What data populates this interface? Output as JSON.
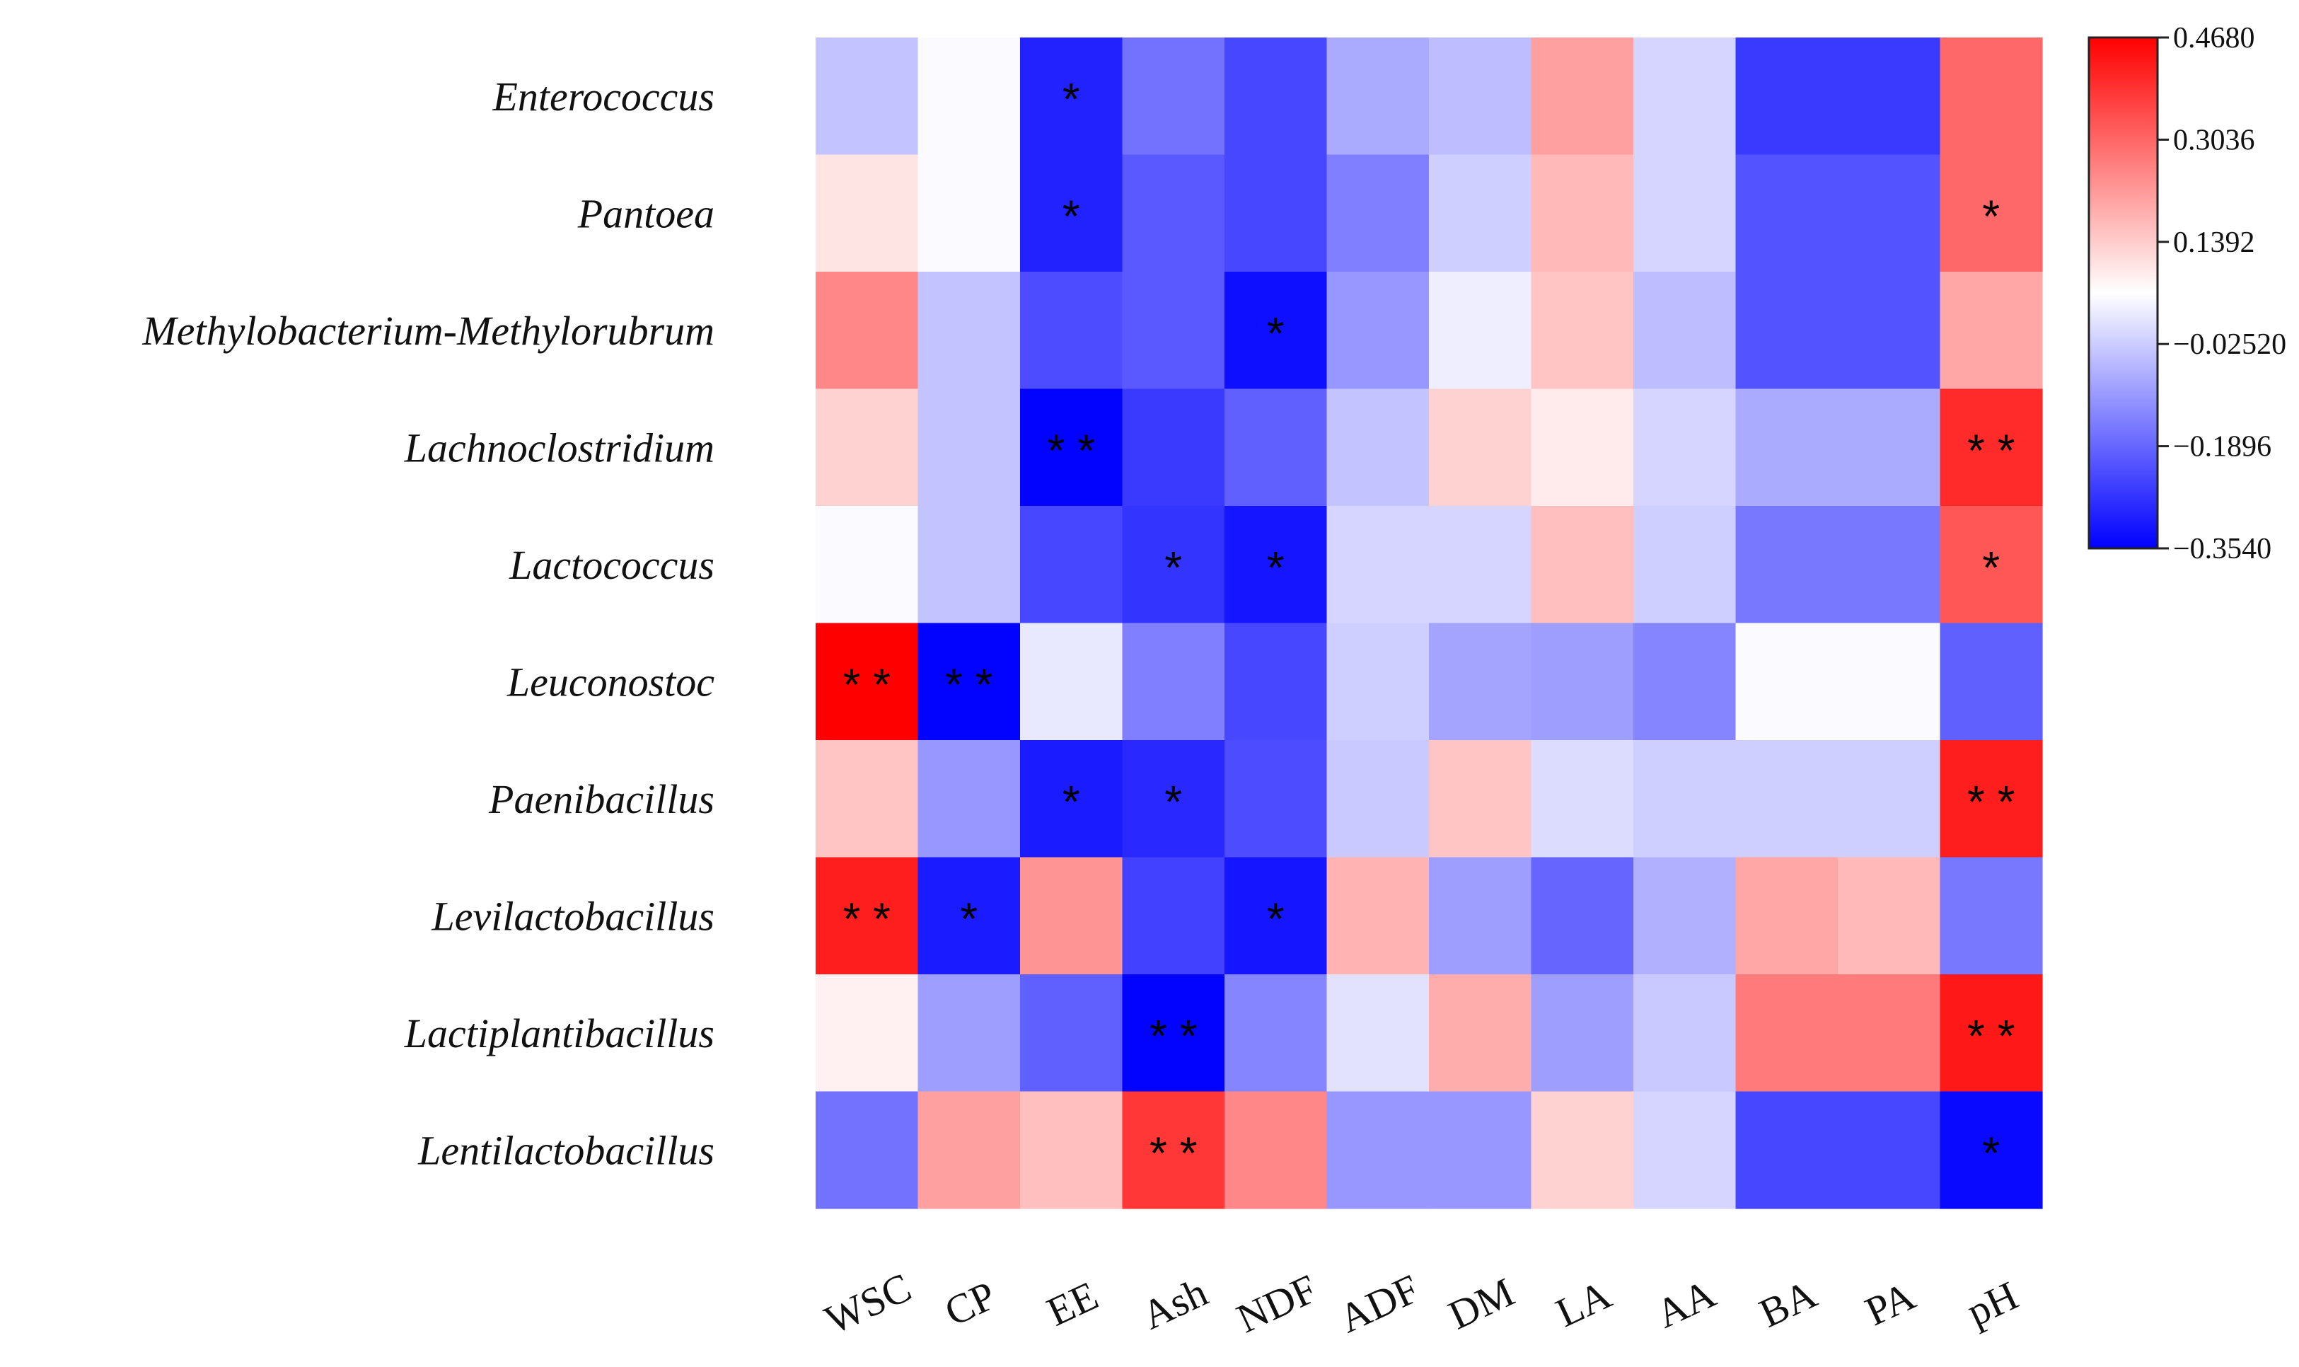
{
  "chart_data": {
    "type": "heatmap",
    "title": "",
    "rows": [
      "Enterococcus",
      "Pantoea",
      "Methylobacterium-Methylorubrum",
      "Lachnoclostridium",
      "Lactococcus",
      "Leuconostoc",
      "Paenibacillus",
      "Levilactobacillus",
      "Lactiplantibacillus",
      "Lentilactobacillus"
    ],
    "columns": [
      "WSC",
      "CP",
      "EE",
      "Ash",
      "NDF",
      "ADF",
      "DM",
      "LA",
      "AA",
      "BA",
      "PA",
      "pH"
    ],
    "values": [
      [
        -0.04,
        0.05,
        -0.3,
        -0.17,
        -0.24,
        -0.08,
        -0.05,
        0.21,
        -0.01,
        -0.26,
        -0.26,
        0.3
      ],
      [
        0.1,
        0.05,
        -0.3,
        -0.21,
        -0.24,
        -0.15,
        -0.02,
        0.17,
        -0.01,
        -0.22,
        -0.22,
        0.3
      ],
      [
        0.25,
        -0.04,
        -0.23,
        -0.21,
        -0.33,
        -0.11,
        0.03,
        0.15,
        -0.05,
        -0.22,
        -0.22,
        0.2
      ],
      [
        0.13,
        -0.04,
        -0.35,
        -0.26,
        -0.2,
        -0.04,
        0.13,
        0.09,
        -0.01,
        -0.08,
        -0.08,
        0.4
      ],
      [
        0.05,
        -0.04,
        -0.24,
        -0.27,
        -0.32,
        -0.01,
        -0.01,
        0.16,
        -0.02,
        -0.16,
        -0.16,
        0.33
      ],
      [
        0.47,
        -0.35,
        0.02,
        -0.15,
        -0.24,
        -0.02,
        -0.09,
        -0.1,
        -0.14,
        0.05,
        0.05,
        -0.2
      ],
      [
        0.15,
        -0.11,
        -0.31,
        -0.29,
        -0.23,
        -0.03,
        0.15,
        0.0,
        -0.02,
        -0.02,
        -0.02,
        0.42
      ],
      [
        0.42,
        -0.31,
        0.23,
        -0.25,
        -0.32,
        0.18,
        -0.1,
        -0.19,
        -0.07,
        0.2,
        0.17,
        -0.16
      ],
      [
        0.08,
        -0.1,
        -0.2,
        -0.35,
        -0.14,
        0.01,
        0.19,
        -0.1,
        -0.03,
        0.27,
        0.27,
        0.43
      ],
      [
        -0.17,
        0.21,
        0.16,
        0.38,
        0.25,
        -0.11,
        -0.11,
        0.13,
        -0.01,
        -0.24,
        -0.24,
        -0.34
      ]
    ],
    "significance": [
      [
        "",
        "",
        "*",
        "",
        "",
        "",
        "",
        "",
        "",
        "",
        "",
        ""
      ],
      [
        "",
        "",
        "*",
        "",
        "",
        "",
        "",
        "",
        "",
        "",
        "",
        "*"
      ],
      [
        "",
        "",
        "",
        "",
        "*",
        "",
        "",
        "",
        "",
        "",
        "",
        ""
      ],
      [
        "",
        "",
        "**",
        "",
        "",
        "",
        "",
        "",
        "",
        "",
        "",
        "**"
      ],
      [
        "",
        "",
        "",
        "*",
        "*",
        "",
        "",
        "",
        "",
        "",
        "",
        "*"
      ],
      [
        "**",
        "**",
        "",
        "",
        "",
        "",
        "",
        "",
        "",
        "",
        "",
        ""
      ],
      [
        "",
        "",
        "*",
        "*",
        "",
        "",
        "",
        "",
        "",
        "",
        "",
        "**"
      ],
      [
        "**",
        "*",
        "",
        "",
        "*",
        "",
        "",
        "",
        "",
        "",
        "",
        ""
      ],
      [
        "",
        "",
        "",
        "**",
        "",
        "",
        "",
        "",
        "",
        "",
        "",
        "**"
      ],
      [
        "",
        "",
        "",
        "**",
        "",
        "",
        "",
        "",
        "",
        "",
        "",
        "*"
      ]
    ],
    "colorbar": {
      "min": -0.354,
      "max": 0.468,
      "ticks": [
        "0.4680",
        "0.3036",
        "0.1392",
        "−0.02520",
        "−0.1896",
        "−0.3540"
      ]
    },
    "colors": {
      "negative": "#0000ff",
      "neutral": "#ffffff",
      "positive": "#ff0000"
    }
  }
}
